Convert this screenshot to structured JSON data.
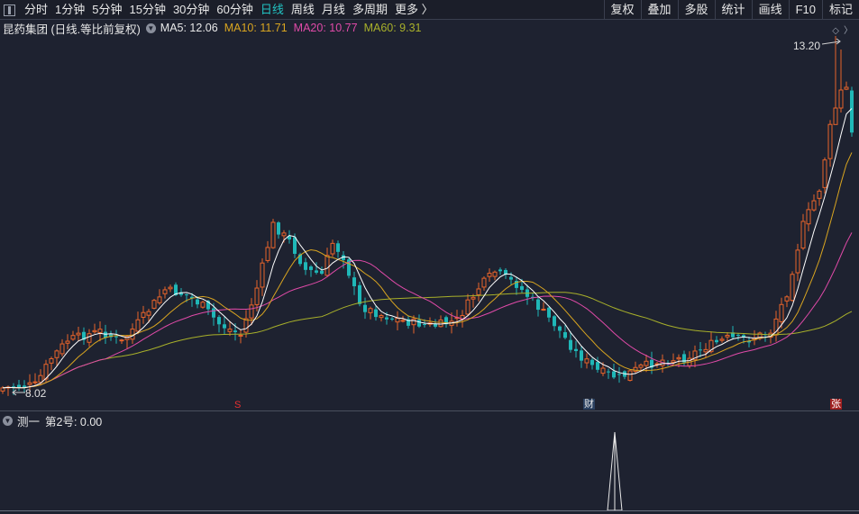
{
  "toolbar": {
    "periods": [
      "分时",
      "1分钟",
      "5分钟",
      "15分钟",
      "30分钟",
      "60分钟",
      "日线",
      "周线",
      "月线",
      "多周期",
      "更多 〉"
    ],
    "active_index": 6,
    "right_buttons": [
      "复权",
      "叠加",
      "多股",
      "统计",
      "画线",
      "F10",
      "标记"
    ]
  },
  "legend": {
    "title": "昆药集团 (日线.等比前复权)",
    "ma5": "MA5: 12.06",
    "ma10": "MA10: 11.71",
    "ma20": "MA20: 10.77",
    "ma60": "MA60: 9.31"
  },
  "annotations": {
    "high": "13.20",
    "low": "8.02"
  },
  "markers": {
    "s": "S",
    "cai": "财",
    "zhang": "张"
  },
  "sub": {
    "label": "测一",
    "value": "第2号: 0.00"
  },
  "icons": [
    "panel-toggle-icon",
    "chevron-down-icon",
    "diamond-icon",
    "chevron-right-icon"
  ],
  "colors": {
    "up": "#e8642a",
    "down": "#1fb7b7",
    "ma5": "#ffffff",
    "ma10": "#d9a520",
    "ma20": "#e04aa8",
    "ma60": "#a8b02a",
    "active": "#22c3c3"
  },
  "chart_data": {
    "type": "candlestick",
    "indicators": [
      "MA5",
      "MA10",
      "MA20",
      "MA60"
    ],
    "price_range": [
      8.02,
      13.2
    ],
    "notes": "Daily candles; MA values shown in legend; sub-pane 测一 shows a single spike near bar 133."
  }
}
